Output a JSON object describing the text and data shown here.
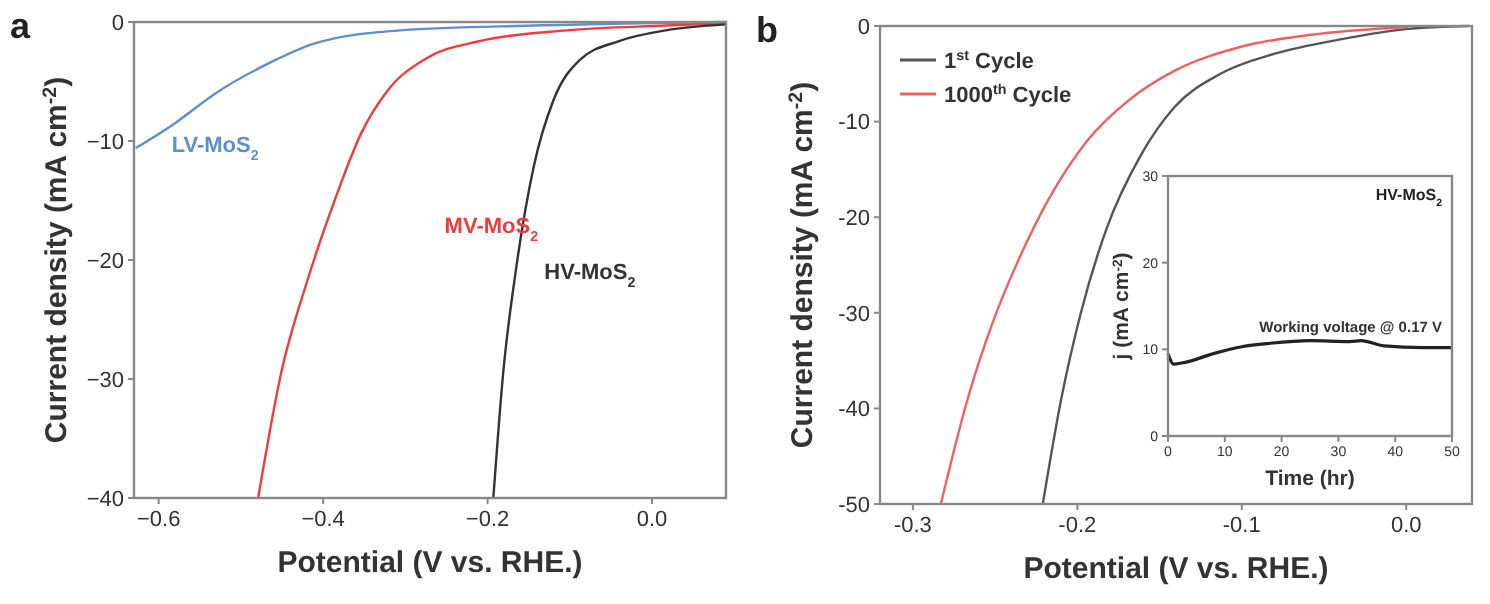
{
  "chart_data": [
    {
      "type": "line",
      "title": "a",
      "xlabel": "Potential (V vs. RHE.)",
      "ylabel": "Current density (mA cm$^{-2}$)",
      "xlim": [
        -0.63,
        0.09
      ],
      "ylim": [
        -40,
        0
      ],
      "xticks": [
        {
          "value": -0.6,
          "label": "−0.6"
        },
        {
          "value": -0.4,
          "label": "−0.4"
        },
        {
          "value": -0.2,
          "label": "−0.2"
        },
        {
          "value": 0,
          "label": "0.0"
        }
      ],
      "yticks": [
        {
          "value": -40,
          "label": "−40"
        },
        {
          "value": -30,
          "label": "−30"
        },
        {
          "value": -20,
          "label": "−20"
        },
        {
          "value": -10,
          "label": "−10"
        },
        0
      ],
      "series": [
        {
          "name": "LV-MoS$_{2}$",
          "color": "#5b8fd6",
          "x": [
            -0.628,
            -0.58,
            -0.531,
            -0.467,
            -0.41,
            -0.306,
            -0.144,
            0.09
          ],
          "values": [
            -10.6,
            -8.5,
            -6,
            -3.5,
            -1.8,
            -0.7,
            -0.3,
            0
          ]
        },
        {
          "name": "MV-MoS$_{2}$",
          "color": "#f03c3c",
          "x": [
            -0.479,
            -0.451,
            -0.419,
            -0.386,
            -0.354,
            -0.322,
            -0.273,
            -0.209,
            -0.104,
            0.017,
            0.09
          ],
          "values": [
            -40,
            -29.5,
            -21.7,
            -15,
            -9.4,
            -5.8,
            -3,
            -1.6,
            -0.7,
            -0.3,
            -0.1
          ]
        },
        {
          "name": "HV-MoS$_{2}$",
          "color": "#333333",
          "x": [
            -0.193,
            -0.181,
            -0.165,
            -0.144,
            -0.12,
            -0.088,
            -0.04,
            0.017,
            0.09
          ],
          "values": [
            -40,
            -29.5,
            -20.6,
            -12.2,
            -6.6,
            -3.2,
            -1.6,
            -0.7,
            -0.2
          ]
        }
      ]
    },
    {
      "type": "line",
      "title": "b",
      "xlabel": "Potential (V vs. RHE.)",
      "ylabel": "Current density (mA cm$^{-2}$)",
      "xlim": [
        -0.32,
        0.04
      ],
      "ylim": [
        -50,
        0
      ],
      "xticks": [
        -0.3,
        -0.2,
        -0.1,
        {
          "value": 0,
          "label": "0.0"
        }
      ],
      "yticks": [
        -50,
        -40,
        -30,
        -20,
        -10,
        0
      ],
      "legend": "top left",
      "series": [
        {
          "name": "1$^{st}$ Cycle",
          "color": "#555555",
          "x": [
            -0.221,
            -0.21,
            -0.198,
            -0.182,
            -0.161,
            -0.141,
            -0.113,
            -0.08,
            -0.04,
            0.001,
            0.038
          ],
          "values": [
            -50,
            -39.2,
            -30.1,
            -21.1,
            -13.4,
            -8.5,
            -5,
            -2.9,
            -1.4,
            -0.3,
            0
          ]
        },
        {
          "name": "1000$^{th}$ Cycle",
          "color": "#f06060",
          "x": [
            -0.283,
            -0.267,
            -0.251,
            -0.234,
            -0.218,
            -0.194,
            -0.169,
            -0.141,
            -0.101,
            -0.052,
            0.001
          ],
          "values": [
            -50,
            -39.2,
            -30.8,
            -23.8,
            -18.3,
            -12,
            -7.8,
            -4.7,
            -2.2,
            -0.8,
            -0.1
          ]
        }
      ]
    },
    {
      "type": "line",
      "xlabel": "Time (hr)",
      "ylabel": "j (mA cm$^{-2}$)",
      "xlim": [
        0,
        50
      ],
      "ylim": [
        0,
        30
      ],
      "xticks": [
        0,
        10,
        20,
        30,
        40,
        50
      ],
      "yticks": [
        0,
        10,
        20,
        30
      ],
      "annotations": [
        "HV-MoS$_{2}$",
        "Working voltage @ 0.17 V"
      ],
      "series": [
        {
          "color": "#222222",
          "x": [
            0,
            1,
            3,
            8,
            13,
            18,
            25,
            32,
            34,
            38,
            45,
            50
          ],
          "values": [
            9.5,
            8.3,
            8.5,
            9.5,
            10.3,
            10.7,
            11,
            10.9,
            11,
            10.4,
            10.2,
            10.2
          ]
        }
      ]
    }
  ]
}
